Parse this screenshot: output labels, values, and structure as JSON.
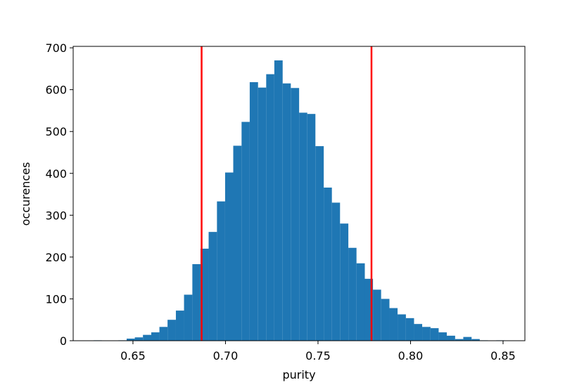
{
  "chart_data": {
    "type": "histogram",
    "xlabel": "purity",
    "ylabel": "occurences",
    "bins": [
      0.6288,
      0.6332,
      0.6377,
      0.6421,
      0.6466,
      0.651,
      0.6554,
      0.6599,
      0.6643,
      0.6687,
      0.6732,
      0.6776,
      0.6821,
      0.6865,
      0.6909,
      0.6954,
      0.6998,
      0.7042,
      0.7087,
      0.7131,
      0.7176,
      0.722,
      0.7264,
      0.7309,
      0.7353,
      0.7398,
      0.7442,
      0.7486,
      0.7531,
      0.7575,
      0.7619,
      0.7664,
      0.7708,
      0.7753,
      0.7797,
      0.7841,
      0.7886,
      0.793,
      0.7975,
      0.8019,
      0.8063,
      0.8108,
      0.8152,
      0.8196,
      0.8241,
      0.8285,
      0.833,
      0.8374,
      0.8418,
      0.8463,
      0.8507
    ],
    "values": [
      1,
      0,
      0,
      1,
      5,
      8,
      14,
      20,
      33,
      50,
      72,
      110,
      183,
      220,
      260,
      333,
      402,
      466,
      523,
      618,
      605,
      637,
      670,
      615,
      604,
      545,
      542,
      465,
      366,
      330,
      280,
      222,
      185,
      148,
      122,
      100,
      78,
      63,
      54,
      40,
      33,
      30,
      20,
      12,
      4,
      9,
      4,
      1,
      0,
      1
    ],
    "color": "#1f77b4",
    "vlines": [
      0.6871,
      0.7789
    ],
    "vline_color": "#ff0000",
    "xlim": [
      0.6177,
      0.8618
    ],
    "ylim": [
      0,
      703.5
    ],
    "xticks": [
      0.65,
      {
        "value": 0.7,
        "label": "0.70"
      },
      0.75,
      {
        "value": 0.8,
        "label": "0.80"
      },
      0.85
    ],
    "yticks": [
      0,
      100,
      200,
      300,
      400,
      500,
      600,
      700
    ]
  }
}
